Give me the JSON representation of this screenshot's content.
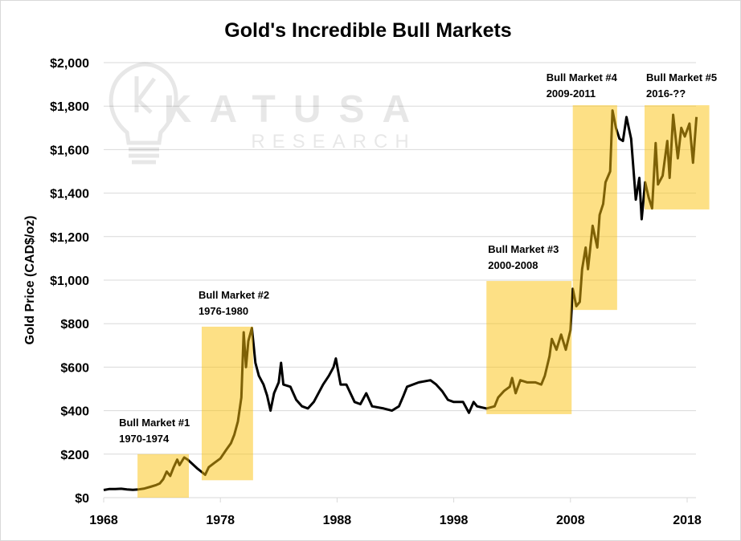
{
  "chart_data": {
    "type": "line",
    "title": "Gold's Incredible Bull Markets",
    "xlabel": "",
    "ylabel": "Gold Price (CAD$/oz)",
    "xlim": [
      1968,
      2019.4
    ],
    "ylim": [
      0,
      2000
    ],
    "x_ticks": [
      "1968",
      "1978",
      "1988",
      "1998",
      "2008",
      "2018"
    ],
    "y_ticks": [
      "$0",
      "$200",
      "$400",
      "$600",
      "$800",
      "$1,000",
      "$1,200",
      "$1,400",
      "$1,600",
      "$1,800",
      "$2,000"
    ],
    "grid": "horizontal",
    "line_color": "#000000",
    "highlight_color": "#fbc10b",
    "watermark": {
      "name": "KATUSA",
      "sub": "RESEARCH"
    },
    "series": [
      {
        "points": [
          [
            1968.0,
            35
          ],
          [
            1968.5,
            40
          ],
          [
            1969.0,
            40
          ],
          [
            1969.5,
            41
          ],
          [
            1970.0,
            38
          ],
          [
            1970.5,
            36
          ],
          [
            1971.0,
            38
          ],
          [
            1971.5,
            42
          ],
          [
            1972.0,
            50
          ],
          [
            1972.5,
            58
          ],
          [
            1972.8,
            65
          ],
          [
            1973.1,
            85
          ],
          [
            1973.4,
            120
          ],
          [
            1973.7,
            100
          ],
          [
            1974.0,
            140
          ],
          [
            1974.3,
            175
          ],
          [
            1974.5,
            150
          ],
          [
            1974.9,
            185
          ],
          [
            1975.2,
            175
          ],
          [
            1975.5,
            160
          ],
          [
            1976.0,
            135
          ],
          [
            1976.4,
            118
          ],
          [
            1976.7,
            105
          ],
          [
            1977.0,
            140
          ],
          [
            1977.5,
            160
          ],
          [
            1978.0,
            180
          ],
          [
            1978.5,
            220
          ],
          [
            1978.9,
            250
          ],
          [
            1979.2,
            290
          ],
          [
            1979.5,
            350
          ],
          [
            1979.8,
            460
          ],
          [
            1980.0,
            760
          ],
          [
            1980.2,
            600
          ],
          [
            1980.4,
            720
          ],
          [
            1980.7,
            780
          ],
          [
            1981.0,
            620
          ],
          [
            1981.3,
            560
          ],
          [
            1981.7,
            520
          ],
          [
            1982.0,
            470
          ],
          [
            1982.3,
            400
          ],
          [
            1982.6,
            480
          ],
          [
            1983.0,
            530
          ],
          [
            1983.2,
            620
          ],
          [
            1983.4,
            520
          ],
          [
            1984.0,
            510
          ],
          [
            1984.5,
            450
          ],
          [
            1985.0,
            420
          ],
          [
            1985.5,
            410
          ],
          [
            1986.0,
            440
          ],
          [
            1986.8,
            520
          ],
          [
            1987.3,
            560
          ],
          [
            1987.7,
            600
          ],
          [
            1987.9,
            640
          ],
          [
            1988.3,
            520
          ],
          [
            1988.8,
            520
          ],
          [
            1989.5,
            440
          ],
          [
            1990.0,
            430
          ],
          [
            1990.5,
            480
          ],
          [
            1991.0,
            420
          ],
          [
            1992.0,
            410
          ],
          [
            1992.7,
            400
          ],
          [
            1993.3,
            420
          ],
          [
            1993.7,
            470
          ],
          [
            1994.0,
            510
          ],
          [
            1995.0,
            530
          ],
          [
            1996.0,
            540
          ],
          [
            1996.5,
            520
          ],
          [
            1997.0,
            490
          ],
          [
            1997.5,
            450
          ],
          [
            1998.0,
            440
          ],
          [
            1998.8,
            440
          ],
          [
            1999.3,
            390
          ],
          [
            1999.7,
            440
          ],
          [
            2000.0,
            420
          ],
          [
            2000.8,
            410
          ],
          [
            2001.5,
            420
          ],
          [
            2001.8,
            460
          ],
          [
            2002.3,
            490
          ],
          [
            2002.8,
            510
          ],
          [
            2003.0,
            550
          ],
          [
            2003.3,
            480
          ],
          [
            2003.7,
            540
          ],
          [
            2004.3,
            530
          ],
          [
            2005.0,
            530
          ],
          [
            2005.5,
            520
          ],
          [
            2005.8,
            560
          ],
          [
            2006.2,
            650
          ],
          [
            2006.4,
            730
          ],
          [
            2006.8,
            680
          ],
          [
            2007.2,
            750
          ],
          [
            2007.6,
            680
          ],
          [
            2008.0,
            770
          ],
          [
            2008.2,
            960
          ],
          [
            2008.5,
            880
          ],
          [
            2008.8,
            900
          ],
          [
            2009.0,
            1050
          ],
          [
            2009.3,
            1150
          ],
          [
            2009.5,
            1050
          ],
          [
            2009.9,
            1250
          ],
          [
            2010.3,
            1150
          ],
          [
            2010.5,
            1300
          ],
          [
            2010.8,
            1350
          ],
          [
            2011.0,
            1450
          ],
          [
            2011.4,
            1500
          ],
          [
            2011.6,
            1780
          ],
          [
            2011.9,
            1700
          ],
          [
            2012.2,
            1650
          ],
          [
            2012.5,
            1640
          ],
          [
            2012.8,
            1750
          ],
          [
            2013.2,
            1650
          ],
          [
            2013.6,
            1370
          ],
          [
            2013.9,
            1470
          ],
          [
            2014.1,
            1280
          ],
          [
            2014.4,
            1450
          ],
          [
            2014.7,
            1380
          ],
          [
            2015.0,
            1330
          ],
          [
            2015.3,
            1630
          ],
          [
            2015.5,
            1440
          ],
          [
            2015.9,
            1480
          ],
          [
            2016.3,
            1640
          ],
          [
            2016.5,
            1470
          ],
          [
            2016.8,
            1760
          ],
          [
            2017.2,
            1560
          ],
          [
            2017.5,
            1700
          ],
          [
            2017.8,
            1660
          ],
          [
            2018.2,
            1720
          ],
          [
            2018.5,
            1540
          ],
          [
            2018.8,
            1750
          ]
        ]
      }
    ],
    "highlights": [
      {
        "label": "Bull Market #1",
        "period": "1970-1974",
        "x0": 1970.9,
        "x1": 1975.3,
        "y0": 0,
        "y1": 200
      },
      {
        "label": "Bull Market #2",
        "period": "1976-1980",
        "x0": 1976.4,
        "x1": 1980.8,
        "y0": 80,
        "y1": 786
      },
      {
        "label": "Bull Market #3",
        "period": "2000-2008",
        "x0": 2000.8,
        "x1": 2008.1,
        "y0": 384,
        "y1": 996
      },
      {
        "label": "Bull Market #4",
        "period": "2009-2011",
        "x0": 2008.2,
        "x1": 2012.0,
        "y0": 863,
        "y1": 1804
      },
      {
        "label": "Bull Market #5",
        "period": "2016-??",
        "x0": 2014.35,
        "x1": 2019.9,
        "y0": 1325,
        "y1": 1804
      }
    ]
  }
}
